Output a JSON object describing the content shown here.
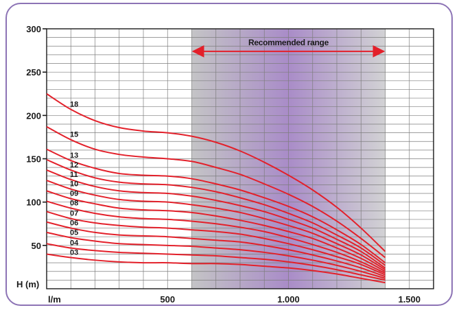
{
  "chart_data": {
    "type": "line",
    "xlabel": "l/m",
    "ylabel": "H (m)",
    "xlim": [
      0,
      1600
    ],
    "ylim": [
      0,
      300
    ],
    "x_ticks": [
      {
        "value": 500,
        "label": "500"
      },
      {
        "value": 1000,
        "label": "1.000"
      },
      {
        "value": 1500,
        "label": "1.500"
      }
    ],
    "y_ticks": [
      {
        "value": 50,
        "label": "50"
      },
      {
        "value": 100,
        "label": "100"
      },
      {
        "value": 150,
        "label": "150"
      },
      {
        "value": 200,
        "label": "200"
      },
      {
        "value": 250,
        "label": "250"
      },
      {
        "value": 300,
        "label": "300"
      }
    ],
    "grid": true,
    "recommended_range": {
      "label": "Recommended range",
      "from": 600,
      "to": 1400
    },
    "line_color": "#e3202a",
    "x": [
      0,
      100,
      200,
      300,
      400,
      500,
      600,
      700,
      800,
      900,
      1000,
      1100,
      1200,
      1300,
      1400
    ],
    "series": [
      {
        "name": "03",
        "values": [
          40,
          36,
          33,
          31,
          30,
          30,
          29,
          29,
          28,
          26,
          24,
          21,
          17,
          12,
          7
        ]
      },
      {
        "name": "04",
        "values": [
          52,
          47,
          44,
          42,
          41,
          40,
          39,
          38,
          36,
          34,
          31,
          27,
          22,
          16,
          10
        ]
      },
      {
        "name": "05",
        "values": [
          65,
          59,
          55,
          52,
          51,
          50,
          49,
          47,
          45,
          42,
          38,
          33,
          27,
          20,
          12
        ]
      },
      {
        "name": "06",
        "values": [
          77,
          70,
          65,
          62,
          61,
          60,
          58,
          56,
          54,
          50,
          45,
          39,
          32,
          24,
          14
        ]
      },
      {
        "name": "07",
        "values": [
          89,
          81,
          76,
          73,
          71,
          70,
          68,
          66,
          63,
          58,
          52,
          45,
          37,
          28,
          16
        ]
      },
      {
        "name": "08",
        "values": [
          101,
          93,
          87,
          83,
          81,
          80,
          78,
          75,
          71,
          66,
          59,
          51,
          42,
          31,
          18
        ]
      },
      {
        "name": "09",
        "values": [
          113,
          104,
          98,
          93,
          91,
          90,
          88,
          84,
          79,
          73,
          66,
          58,
          47,
          35,
          20
        ]
      },
      {
        "name": "10",
        "values": [
          125,
          115,
          108,
          103,
          101,
          100,
          97,
          93,
          88,
          81,
          73,
          64,
          52,
          39,
          22
        ]
      },
      {
        "name": "11",
        "values": [
          137,
          126,
          118,
          113,
          111,
          110,
          107,
          102,
          96,
          89,
          80,
          70,
          57,
          43,
          24
        ]
      },
      {
        "name": "12",
        "values": [
          149,
          137,
          128,
          123,
          121,
          120,
          117,
          112,
          105,
          97,
          87,
          76,
          62,
          47,
          27
        ]
      },
      {
        "name": "13",
        "values": [
          161,
          148,
          139,
          133,
          131,
          130,
          127,
          121,
          114,
          105,
          95,
          83,
          68,
          51,
          30
        ]
      },
      {
        "name": "15",
        "values": [
          187,
          172,
          161,
          155,
          152,
          150,
          147,
          140,
          132,
          121,
          109,
          95,
          78,
          58,
          36
        ]
      },
      {
        "name": "18",
        "values": [
          225,
          207,
          194,
          186,
          182,
          180,
          176,
          169,
          159,
          146,
          131,
          114,
          94,
          70,
          43
        ]
      }
    ]
  }
}
